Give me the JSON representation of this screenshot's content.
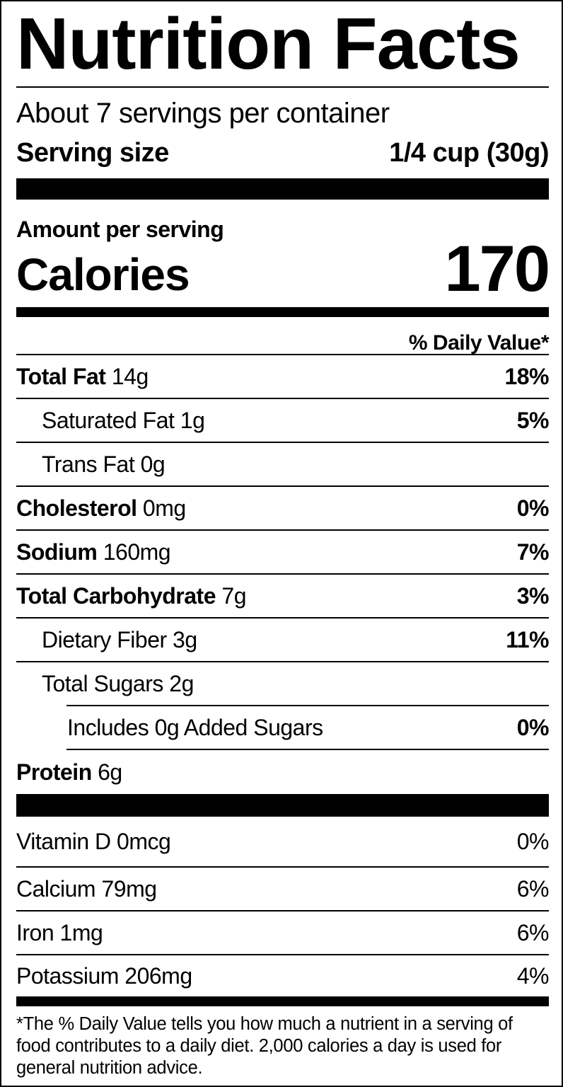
{
  "title": "Nutrition Facts",
  "servings_per_container": "About 7 servings per container",
  "serving_size": {
    "label": "Serving size",
    "value": "1/4 cup (30g)"
  },
  "amount_per_serving": "Amount per serving",
  "calories": {
    "label": "Calories",
    "value": "170"
  },
  "daily_value_header": "% Daily Value*",
  "nutrients": [
    {
      "name": "Total Fat",
      "amount": "14g",
      "dv": "18%"
    },
    {
      "name": "Saturated Fat",
      "amount": "1g",
      "dv": "5%"
    },
    {
      "name": "Trans Fat",
      "amount": "0g",
      "dv": ""
    },
    {
      "name": "Cholesterol",
      "amount": "0mg",
      "dv": "0%"
    },
    {
      "name": "Sodium",
      "amount": "160mg",
      "dv": "7%"
    },
    {
      "name": "Total Carbohydrate",
      "amount": "7g",
      "dv": "3%"
    },
    {
      "name": "Dietary Fiber",
      "amount": "3g",
      "dv": "11%"
    },
    {
      "name": "Total Sugars",
      "amount": "2g",
      "dv": ""
    },
    {
      "name": "Includes 0g Added Sugars",
      "amount": "",
      "dv": "0%"
    },
    {
      "name": "Protein",
      "amount": "6g",
      "dv": ""
    }
  ],
  "vitamins": [
    {
      "name": "Vitamin D",
      "amount": "0mcg",
      "dv": "0%"
    },
    {
      "name": "Calcium",
      "amount": "79mg",
      "dv": "6%"
    },
    {
      "name": "Iron",
      "amount": "1mg",
      "dv": "6%"
    },
    {
      "name": "Potassium",
      "amount": "206mg",
      "dv": "4%"
    }
  ],
  "footnote": "*The % Daily Value tells you how much a nutrient in a serving of food contributes to a daily diet. 2,000 calories a day is used for general nutrition advice."
}
